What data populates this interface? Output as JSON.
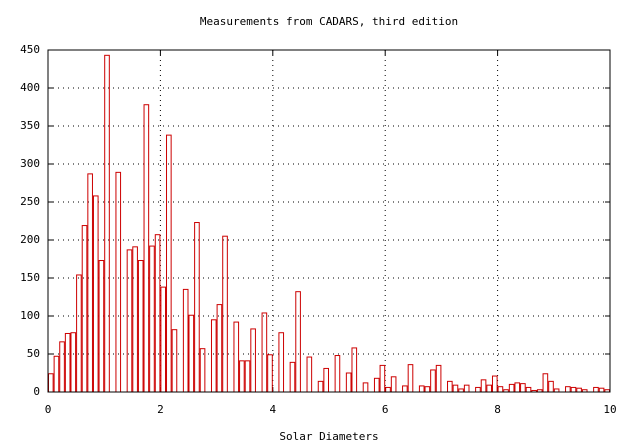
{
  "chart_data": {
    "type": "histogram",
    "title": "Measurements from CADARS, third edition",
    "xlabel": "Solar Diameters",
    "color": "#cc0000",
    "bins": [
      0,
      0.1,
      0.2,
      0.3,
      0.4,
      0.5,
      0.6,
      0.7,
      0.8,
      0.9,
      1,
      1.1,
      1.2,
      1.3,
      1.4,
      1.5,
      1.6,
      1.7,
      1.8,
      1.9,
      2,
      2.1,
      2.2,
      2.3,
      2.4,
      2.5,
      2.6,
      2.7,
      2.8,
      2.9,
      3,
      3.1,
      3.2,
      3.3,
      3.4,
      3.5,
      3.6,
      3.7,
      3.8,
      3.9,
      4,
      4.1,
      4.2,
      4.3,
      4.4,
      4.5,
      4.6,
      4.7,
      4.8,
      4.9,
      5,
      5.1,
      5.2,
      5.3,
      5.4,
      5.5,
      5.6,
      5.7,
      5.8,
      5.9,
      6,
      6.1,
      6.2,
      6.3,
      6.4,
      6.5,
      6.6,
      6.7,
      6.8,
      6.9,
      7,
      7.1,
      7.2,
      7.3,
      7.4,
      7.5,
      7.6,
      7.7,
      7.8,
      7.9,
      8,
      8.1,
      8.2,
      8.3,
      8.4,
      8.5,
      8.6,
      8.7,
      8.8,
      8.9,
      9,
      9.1,
      9.2,
      9.3,
      9.4,
      9.5,
      9.6,
      9.7,
      9.8,
      9.9,
      10
    ],
    "counts": [
      24,
      47,
      66,
      77,
      78,
      154,
      219,
      287,
      258,
      173,
      443,
      0,
      289,
      0,
      187,
      191,
      173,
      378,
      192,
      207,
      138,
      338,
      82,
      0,
      135,
      101,
      223,
      57,
      0,
      95,
      115,
      205,
      0,
      92,
      41,
      41,
      83,
      0,
      104,
      49,
      0,
      78,
      0,
      39,
      132,
      0,
      46,
      0,
      14,
      31,
      0,
      48,
      0,
      25,
      58,
      0,
      12,
      0,
      18,
      35,
      6,
      20,
      0,
      8,
      36,
      0,
      8,
      7,
      29,
      35,
      0,
      14,
      9,
      4,
      9,
      0,
      6,
      16,
      9,
      21,
      7,
      3,
      10,
      12,
      11,
      6,
      2,
      3,
      24,
      14,
      4,
      0,
      7,
      6,
      5,
      3,
      0,
      6,
      5,
      3
    ],
    "xlim": [
      0,
      10
    ],
    "xticks": [
      0,
      2,
      4,
      6,
      8,
      10
    ],
    "ylim": [
      0,
      450
    ],
    "yticks": [
      0,
      50,
      100,
      150,
      200,
      250,
      300,
      350,
      400,
      450
    ],
    "grid": true
  }
}
